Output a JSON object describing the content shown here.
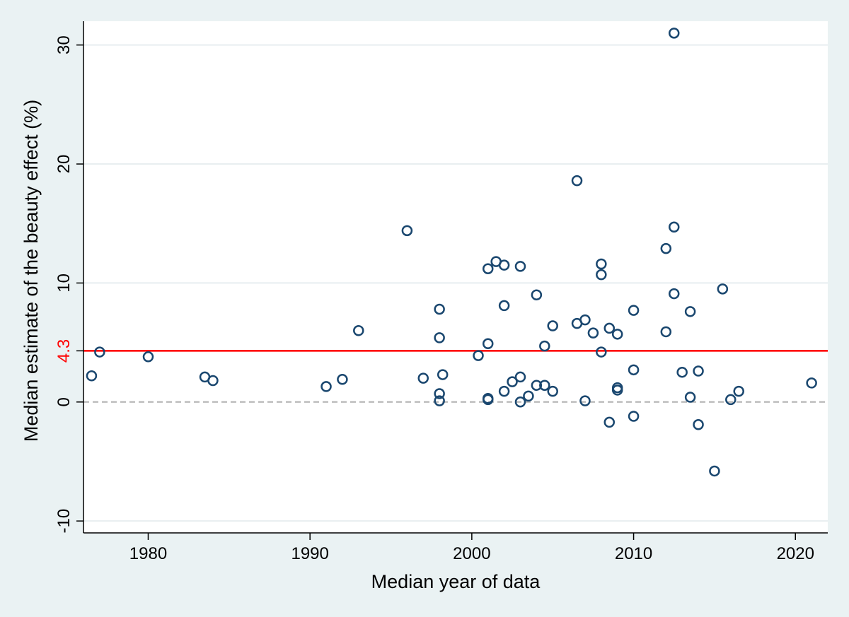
{
  "chart_data": {
    "type": "scatter",
    "title": "",
    "xlabel": "Median year of data",
    "ylabel": "Median estimate of the beauty effect (%)",
    "xlim": [
      1976,
      2022
    ],
    "ylim": [
      -11,
      32
    ],
    "xticks": [
      1980,
      1990,
      2000,
      2010,
      2020
    ],
    "yticks": [
      -10,
      0,
      10,
      20,
      30
    ],
    "grid": "horizontal",
    "legend": "none",
    "reference_lines": [
      {
        "y": 4.3,
        "label": "4.3",
        "color": "#ff0000",
        "style": "solid"
      },
      {
        "y": 0,
        "label": "",
        "color": "#b0b0b0",
        "style": "dashed"
      }
    ],
    "marker_color": "#1a476f",
    "points": [
      {
        "x": 1976.5,
        "y": 2.2
      },
      {
        "x": 1977,
        "y": 4.2
      },
      {
        "x": 1980,
        "y": 3.8
      },
      {
        "x": 1983.5,
        "y": 2.1
      },
      {
        "x": 1984,
        "y": 1.8
      },
      {
        "x": 1991,
        "y": 1.3
      },
      {
        "x": 1992,
        "y": 1.9
      },
      {
        "x": 1993,
        "y": 6.0
      },
      {
        "x": 1996,
        "y": 14.4
      },
      {
        "x": 1997,
        "y": 2.0
      },
      {
        "x": 1998,
        "y": 7.8
      },
      {
        "x": 1998,
        "y": 5.4
      },
      {
        "x": 1998,
        "y": 0.7
      },
      {
        "x": 1998,
        "y": 0.1
      },
      {
        "x": 1998.2,
        "y": 2.3
      },
      {
        "x": 2000.4,
        "y": 3.9
      },
      {
        "x": 2001,
        "y": 11.2
      },
      {
        "x": 2001,
        "y": 4.9
      },
      {
        "x": 2001,
        "y": 0.3
      },
      {
        "x": 2001,
        "y": 0.2
      },
      {
        "x": 2001.5,
        "y": 11.8
      },
      {
        "x": 2002,
        "y": 11.5
      },
      {
        "x": 2002,
        "y": 8.1
      },
      {
        "x": 2002,
        "y": 0.9
      },
      {
        "x": 2002.5,
        "y": 1.7
      },
      {
        "x": 2003,
        "y": 11.4
      },
      {
        "x": 2003,
        "y": 2.1
      },
      {
        "x": 2003,
        "y": 0.0
      },
      {
        "x": 2003.5,
        "y": 0.5
      },
      {
        "x": 2004,
        "y": 9.0
      },
      {
        "x": 2004,
        "y": 1.4
      },
      {
        "x": 2004.5,
        "y": 4.7
      },
      {
        "x": 2004.5,
        "y": 1.4
      },
      {
        "x": 2005,
        "y": 6.4
      },
      {
        "x": 2005,
        "y": 0.9
      },
      {
        "x": 2006.5,
        "y": 18.6
      },
      {
        "x": 2006.5,
        "y": 6.6
      },
      {
        "x": 2007,
        "y": 6.9
      },
      {
        "x": 2007,
        "y": 0.1
      },
      {
        "x": 2007.5,
        "y": 5.8
      },
      {
        "x": 2008,
        "y": 11.6
      },
      {
        "x": 2008,
        "y": 10.7
      },
      {
        "x": 2008,
        "y": 4.2
      },
      {
        "x": 2008.5,
        "y": 6.2
      },
      {
        "x": 2008.5,
        "y": -1.7
      },
      {
        "x": 2009,
        "y": 5.7
      },
      {
        "x": 2009,
        "y": 1.2
      },
      {
        "x": 2009,
        "y": 1.0
      },
      {
        "x": 2010,
        "y": 7.7
      },
      {
        "x": 2010,
        "y": 2.7
      },
      {
        "x": 2010,
        "y": -1.2
      },
      {
        "x": 2012,
        "y": 12.9
      },
      {
        "x": 2012,
        "y": 5.9
      },
      {
        "x": 2012.5,
        "y": 31.0
      },
      {
        "x": 2012.5,
        "y": 14.7
      },
      {
        "x": 2012.5,
        "y": 9.1
      },
      {
        "x": 2013,
        "y": 2.5
      },
      {
        "x": 2013.5,
        "y": 7.6
      },
      {
        "x": 2013.5,
        "y": 0.4
      },
      {
        "x": 2014,
        "y": 2.6
      },
      {
        "x": 2014,
        "y": -1.9
      },
      {
        "x": 2015,
        "y": -5.8
      },
      {
        "x": 2015.5,
        "y": 9.5
      },
      {
        "x": 2016,
        "y": 0.2
      },
      {
        "x": 2016.5,
        "y": 0.9
      },
      {
        "x": 2021,
        "y": 1.6
      }
    ]
  }
}
